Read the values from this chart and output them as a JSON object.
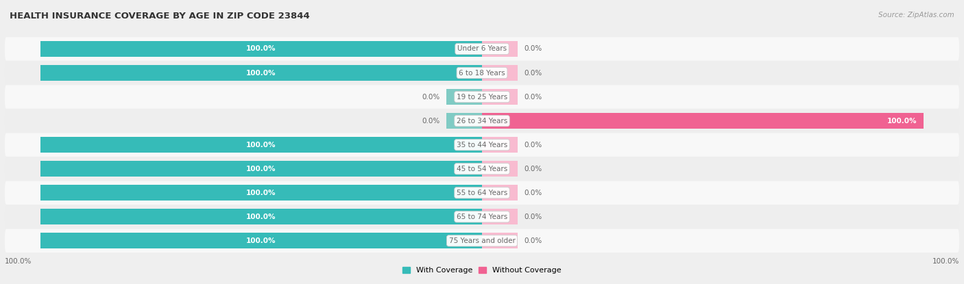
{
  "title": "HEALTH INSURANCE COVERAGE BY AGE IN ZIP CODE 23844",
  "source": "Source: ZipAtlas.com",
  "categories": [
    "Under 6 Years",
    "6 to 18 Years",
    "19 to 25 Years",
    "26 to 34 Years",
    "35 to 44 Years",
    "45 to 54 Years",
    "55 to 64 Years",
    "65 to 74 Years",
    "75 Years and older"
  ],
  "with_coverage": [
    100.0,
    100.0,
    0.0,
    0.0,
    100.0,
    100.0,
    100.0,
    100.0,
    100.0
  ],
  "without_coverage": [
    0.0,
    0.0,
    0.0,
    100.0,
    0.0,
    0.0,
    0.0,
    0.0,
    0.0
  ],
  "with_color": "#36bbb8",
  "without_color_full": "#f06292",
  "without_color_small": "#f8bbd0",
  "with_color_small": "#80cbc4",
  "bg_color": "#efefef",
  "row_bg_colors": [
    "#f8f8f8",
    "#eeeeee"
  ],
  "label_white": "#ffffff",
  "label_dark": "#666666",
  "title_color": "#333333",
  "source_color": "#999999",
  "legend_with": "With Coverage",
  "legend_without": "Without Coverage",
  "x_left_label": "100.0%",
  "x_right_label": "100.0%",
  "max_val": 100,
  "small_stub_val": 8
}
